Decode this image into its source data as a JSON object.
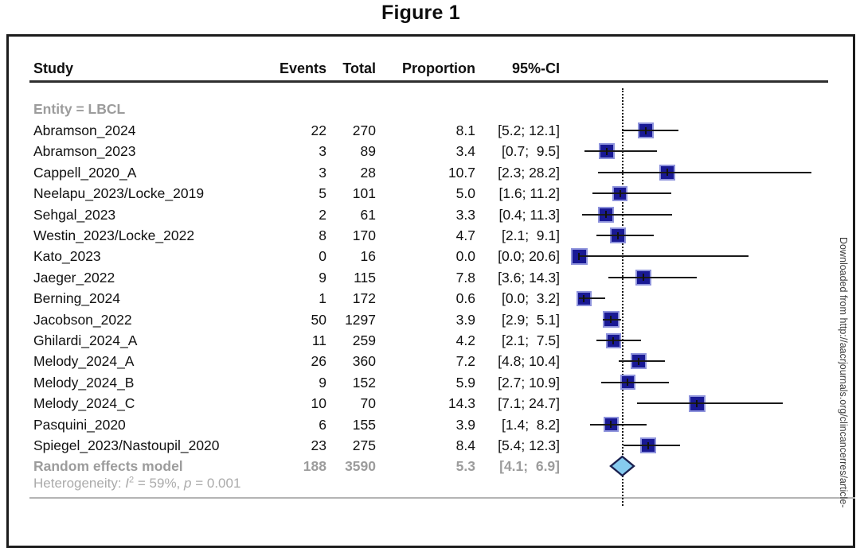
{
  "figure_title": "Figure 1",
  "watermark_text": "Downloaded from http://aacrjournals.org/clincancerres/article-",
  "columns": {
    "study": "Study",
    "events": "Events",
    "total": "Total",
    "proportion": "Proportion",
    "ci": "95%-CI"
  },
  "group_label": "Entity = LBCL",
  "heterogeneity": {
    "prefix": "Heterogeneity: ",
    "stat": "I",
    "stat_sup": "2",
    "mid": " = 59%, ",
    "p": "p",
    "tail": " = 0.001"
  },
  "colors": {
    "square_fill": "#191994",
    "square_border": "#8e93dc",
    "diamond_fill": "#86cbef",
    "diamond_border": "#1b2150",
    "ci_line": "#1a1a1a",
    "tick": "#111111",
    "gray_text": "#9c9c9c",
    "heterogeneity_text": "#ababab",
    "study_text": "#111111"
  },
  "chart_data": {
    "type": "forest",
    "effect_measure": "Proportion (%)",
    "x_implied_range": [
      0,
      28.2
    ],
    "vline_at": 5.3,
    "grid": false,
    "studies": [
      {
        "name": "Abramson_2024",
        "events": 22,
        "total": 270,
        "proportion": 8.1,
        "proportion_text": "8.1",
        "ci_text": "[5.2; 12.1]",
        "lo": 5.2,
        "hi": 12.1,
        "size": 20
      },
      {
        "name": "Abramson_2023",
        "events": 3,
        "total": 89,
        "proportion": 3.4,
        "proportion_text": "3.4",
        "ci_text": "[0.7;  9.5]",
        "lo": 0.7,
        "hi": 9.5,
        "size": 20
      },
      {
        "name": "Cappell_2020_A",
        "events": 3,
        "total": 28,
        "proportion": 10.7,
        "proportion_text": "10.7",
        "ci_text": "[2.3; 28.2]",
        "lo": 2.3,
        "hi": 28.2,
        "size": 20
      },
      {
        "name": "Neelapu_2023/Locke_2019",
        "events": 5,
        "total": 101,
        "proportion": 5.0,
        "proportion_text": "5.0",
        "ci_text": "[1.6; 11.2]",
        "lo": 1.6,
        "hi": 11.2,
        "size": 19
      },
      {
        "name": "Sehgal_2023",
        "events": 2,
        "total": 61,
        "proportion": 3.3,
        "proportion_text": "3.3",
        "ci_text": "[0.4; 11.3]",
        "lo": 0.4,
        "hi": 11.3,
        "size": 20
      },
      {
        "name": "Westin_2023/Locke_2022",
        "events": 8,
        "total": 170,
        "proportion": 4.7,
        "proportion_text": "4.7",
        "ci_text": "[2.1;  9.1]",
        "lo": 2.1,
        "hi": 9.1,
        "size": 20
      },
      {
        "name": "Kato_2023",
        "events": 0,
        "total": 16,
        "proportion": 0.0,
        "proportion_text": "0.0",
        "ci_text": "[0.0; 20.6]",
        "lo": 0.0,
        "hi": 20.6,
        "size": 21
      },
      {
        "name": "Jaeger_2022",
        "events": 9,
        "total": 115,
        "proportion": 7.8,
        "proportion_text": "7.8",
        "ci_text": "[3.6; 14.3]",
        "lo": 3.6,
        "hi": 14.3,
        "size": 20
      },
      {
        "name": "Berning_2024",
        "events": 1,
        "total": 172,
        "proportion": 0.6,
        "proportion_text": "0.6",
        "ci_text": "[0.0;  3.2]",
        "lo": 0.0,
        "hi": 3.2,
        "size": 19
      },
      {
        "name": "Jacobson_2022",
        "events": 50,
        "total": 1297,
        "proportion": 3.9,
        "proportion_text": "3.9",
        "ci_text": "[2.9;  5.1]",
        "lo": 2.9,
        "hi": 5.1,
        "size": 21
      },
      {
        "name": "Ghilardi_2024_A",
        "events": 11,
        "total": 259,
        "proportion": 4.2,
        "proportion_text": "4.2",
        "ci_text": "[2.1;  7.5]",
        "lo": 2.1,
        "hi": 7.5,
        "size": 19
      },
      {
        "name": "Melody_2024_A",
        "events": 26,
        "total": 360,
        "proportion": 7.2,
        "proportion_text": "7.2",
        "ci_text": "[4.8; 10.4]",
        "lo": 4.8,
        "hi": 10.4,
        "size": 20
      },
      {
        "name": "Melody_2024_B",
        "events": 9,
        "total": 152,
        "proportion": 5.9,
        "proportion_text": "5.9",
        "ci_text": "[2.7; 10.9]",
        "lo": 2.7,
        "hi": 10.9,
        "size": 19
      },
      {
        "name": "Melody_2024_C",
        "events": 10,
        "total": 70,
        "proportion": 14.3,
        "proportion_text": "14.3",
        "ci_text": "[7.1; 24.7]",
        "lo": 7.1,
        "hi": 24.7,
        "size": 21
      },
      {
        "name": "Pasquini_2020",
        "events": 6,
        "total": 155,
        "proportion": 3.9,
        "proportion_text": "3.9",
        "ci_text": "[1.4;  8.2]",
        "lo": 1.4,
        "hi": 8.2,
        "size": 19
      },
      {
        "name": "Spiegel_2023/Nastoupil_2020",
        "events": 23,
        "total": 275,
        "proportion": 8.4,
        "proportion_text": "8.4",
        "ci_text": "[5.4; 12.3]",
        "lo": 5.4,
        "hi": 12.3,
        "size": 20
      }
    ],
    "summary": {
      "name": "Random effects model",
      "events": 188,
      "total": 3590,
      "proportion": 5.3,
      "proportion_text": "5.3",
      "ci_text": "[4.1;  6.9]",
      "lo": 4.1,
      "hi": 6.9
    },
    "heterogeneity_plain": "Heterogeneity: I2 = 59%, p = 0.001"
  }
}
